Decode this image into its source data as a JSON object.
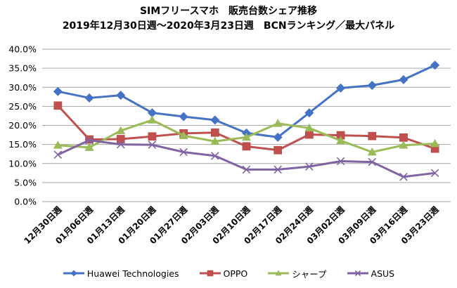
{
  "chart_data": {
    "type": "line",
    "title": "SIMフリースマホ　販売台数シェア推移",
    "subtitle": "2019年12月30日週〜2020年3月23日週　BCNランキング／最大パネル",
    "xlabel": "",
    "ylabel": "",
    "ylim": [
      0,
      40
    ],
    "yticks": [
      "0.0%",
      "5.0%",
      "10.0%",
      "15.0%",
      "20.0%",
      "25.0%",
      "30.0%",
      "35.0%",
      "40.0%"
    ],
    "ytick_values": [
      0,
      5,
      10,
      15,
      20,
      25,
      30,
      35,
      40
    ],
    "grid": true,
    "legend_position": "bottom",
    "categories": [
      "12月30日週",
      "01月06日週",
      "01月13日週",
      "01月20日週",
      "01月27日週",
      "02月03日週",
      "02月10日週",
      "02月17日週",
      "02月24日週",
      "03月02日週",
      "03月09日週",
      "03月16日週",
      "03月23日週"
    ],
    "series": [
      {
        "name": "Huawei Technologies",
        "color": "#4472C4",
        "marker": "diamond",
        "values": [
          28.9,
          27.2,
          27.9,
          23.3,
          22.3,
          21.4,
          18.0,
          16.9,
          23.3,
          29.8,
          30.5,
          32.0,
          35.8
        ]
      },
      {
        "name": "OPPO",
        "color": "#C0504D",
        "marker": "square",
        "values": [
          25.2,
          16.3,
          16.4,
          17.1,
          17.9,
          18.1,
          14.5,
          13.5,
          17.6,
          17.4,
          17.2,
          16.8,
          13.9
        ]
      },
      {
        "name": "シャープ",
        "color": "#9BBB59",
        "marker": "triangle",
        "values": [
          14.8,
          14.2,
          18.6,
          21.4,
          17.3,
          15.8,
          16.9,
          20.5,
          19.3,
          16.0,
          13.0,
          14.8,
          15.2
        ]
      },
      {
        "name": "ASUS",
        "color": "#8064A2",
        "marker": "x",
        "values": [
          12.3,
          16.1,
          15.0,
          14.9,
          13.0,
          12.0,
          8.4,
          8.4,
          9.2,
          10.6,
          10.4,
          6.5,
          7.5
        ]
      }
    ]
  }
}
